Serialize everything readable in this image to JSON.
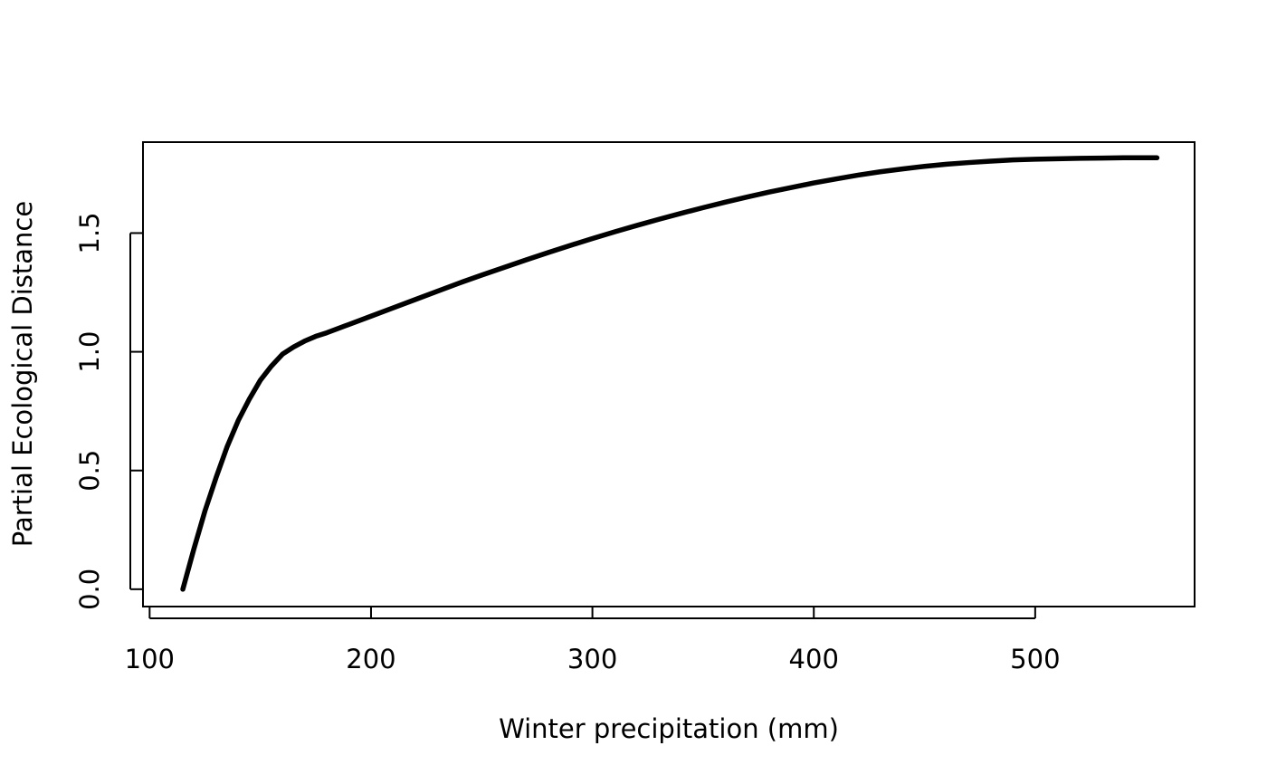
{
  "chart_data": {
    "type": "line",
    "title": "",
    "xlabel": "Winter precipitation (mm)",
    "ylabel": "Partial Ecological Distance",
    "xlim": [
      97,
      572
    ],
    "ylim": [
      -0.073,
      1.883
    ],
    "x_ticks": [
      100,
      200,
      300,
      400,
      500
    ],
    "x_tick_labels": [
      "100",
      "200",
      "300",
      "400",
      "500"
    ],
    "y_ticks": [
      0.0,
      0.5,
      1.0,
      1.5
    ],
    "y_tick_labels": [
      "0.0",
      "0.5",
      "1.0",
      "1.5"
    ],
    "grid": false,
    "legend": "none",
    "colors": {
      "line": "#000000",
      "background": "#ffffff"
    },
    "series": [
      {
        "x": [
          115,
          120,
          125,
          130,
          135,
          140,
          145,
          150,
          155,
          160,
          165,
          170,
          175,
          180,
          190,
          200,
          210,
          220,
          230,
          240,
          250,
          260,
          270,
          280,
          290,
          300,
          310,
          320,
          330,
          340,
          350,
          360,
          370,
          380,
          390,
          400,
          410,
          420,
          430,
          440,
          450,
          460,
          470,
          480,
          490,
          500,
          510,
          520,
          530,
          540,
          555
        ],
        "y": [
          0.0,
          0.17,
          0.33,
          0.47,
          0.6,
          0.71,
          0.8,
          0.88,
          0.94,
          0.99,
          1.02,
          1.045,
          1.065,
          1.08,
          1.115,
          1.15,
          1.185,
          1.22,
          1.255,
          1.29,
          1.323,
          1.355,
          1.387,
          1.418,
          1.448,
          1.477,
          1.505,
          1.532,
          1.558,
          1.583,
          1.607,
          1.63,
          1.652,
          1.673,
          1.692,
          1.711,
          1.728,
          1.744,
          1.758,
          1.77,
          1.781,
          1.79,
          1.797,
          1.803,
          1.808,
          1.811,
          1.813,
          1.815,
          1.816,
          1.817,
          1.817
        ]
      }
    ]
  }
}
